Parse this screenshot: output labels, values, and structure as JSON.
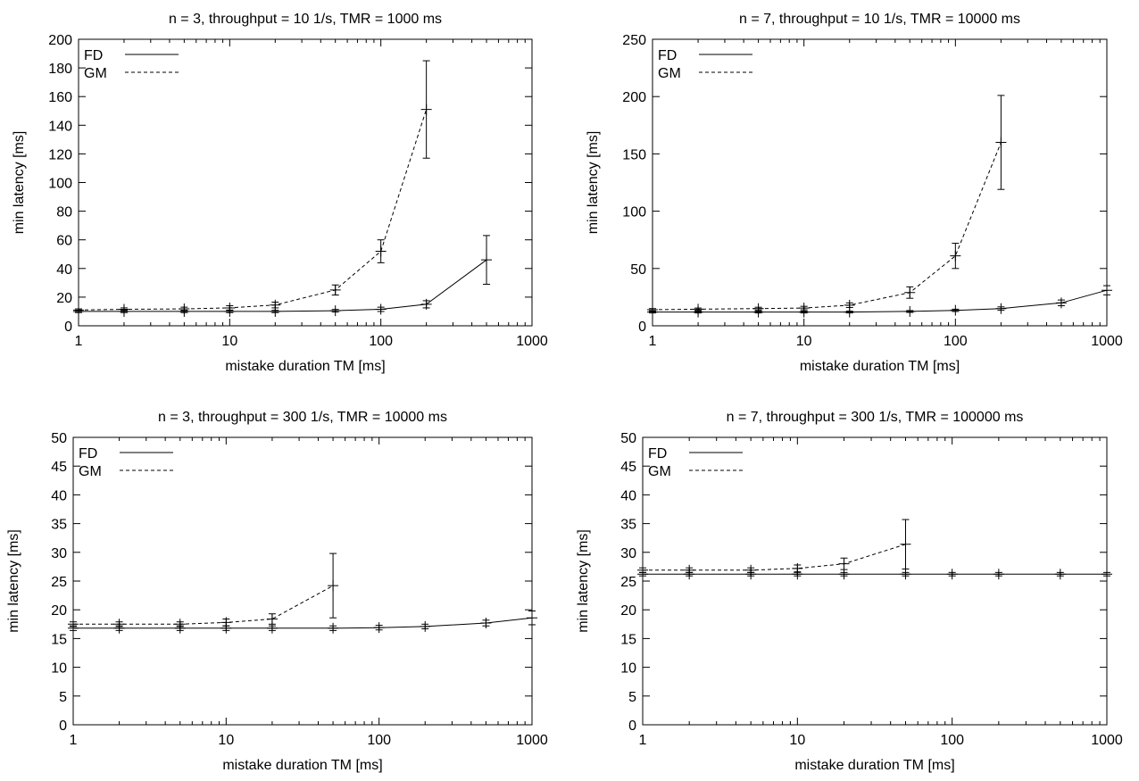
{
  "chart_data": [
    {
      "type": "line",
      "title": "n = 3, throughput = 10 1/s, TMR = 1000 ms",
      "xlabel": "mistake duration TM [ms]",
      "ylabel": "min latency [ms]",
      "xscale": "log",
      "xlim": [
        1,
        1000
      ],
      "ylim": [
        0,
        200
      ],
      "xticks": [
        1,
        10,
        100,
        1000
      ],
      "yticks": [
        0,
        20,
        40,
        60,
        80,
        100,
        120,
        140,
        160,
        180,
        200
      ],
      "legend_position": "top-left",
      "grid": false,
      "series": [
        {
          "name": "FD",
          "dash": "solid",
          "x": [
            1,
            2,
            5,
            10,
            20,
            50,
            100,
            200,
            500
          ],
          "y": [
            10,
            10,
            10,
            10,
            10,
            10.5,
            11.5,
            15,
            46
          ],
          "err": [
            0.8,
            0.8,
            0.8,
            0.8,
            0.8,
            0.9,
            1.5,
            2.5,
            17
          ]
        },
        {
          "name": "GM",
          "dash": "dashed",
          "x": [
            1,
            2,
            5,
            10,
            20,
            50,
            100,
            200
          ],
          "y": [
            11,
            11.5,
            11.8,
            12.5,
            14.5,
            25,
            52,
            151
          ],
          "err": [
            0.8,
            1,
            1.2,
            1.5,
            2,
            3.5,
            8,
            34
          ]
        }
      ]
    },
    {
      "type": "line",
      "title": "n = 7, throughput = 10 1/s, TMR = 10000 ms",
      "xlabel": "mistake duration TM [ms]",
      "ylabel": "min latency [ms]",
      "xscale": "log",
      "xlim": [
        1,
        1000
      ],
      "ylim": [
        0,
        250
      ],
      "xticks": [
        1,
        10,
        100,
        1000
      ],
      "yticks": [
        0,
        50,
        100,
        150,
        200,
        250
      ],
      "legend_position": "top-left",
      "grid": false,
      "series": [
        {
          "name": "FD",
          "dash": "solid",
          "x": [
            1,
            2,
            5,
            10,
            20,
            50,
            100,
            200,
            500,
            1000
          ],
          "y": [
            12,
            12,
            12,
            12,
            12,
            12.5,
            13.5,
            15,
            20,
            31
          ],
          "err": [
            0.8,
            0.8,
            0.8,
            0.8,
            0.8,
            0.8,
            1,
            1.5,
            2.5,
            4
          ]
        },
        {
          "name": "GM",
          "dash": "dashed",
          "x": [
            1,
            2,
            5,
            10,
            20,
            50,
            100,
            200
          ],
          "y": [
            14,
            14.5,
            15,
            15.5,
            18,
            29,
            61,
            160
          ],
          "err": [
            1,
            1,
            1.2,
            1.5,
            2,
            5,
            11,
            41
          ]
        }
      ]
    },
    {
      "type": "line",
      "title": "n = 3, throughput = 300 1/s, TMR = 10000 ms",
      "xlabel": "mistake duration TM [ms]",
      "ylabel": "min latency [ms]",
      "xscale": "log",
      "xlim": [
        1,
        1000
      ],
      "ylim": [
        0,
        50
      ],
      "xticks": [
        1,
        10,
        100,
        1000
      ],
      "yticks": [
        0,
        5,
        10,
        15,
        20,
        25,
        30,
        35,
        40,
        45,
        50
      ],
      "legend_position": "top-left",
      "grid": false,
      "series": [
        {
          "name": "FD",
          "dash": "solid",
          "x": [
            1,
            2,
            5,
            10,
            20,
            50,
            100,
            200,
            500,
            1000
          ],
          "y": [
            16.8,
            16.8,
            16.8,
            16.8,
            16.8,
            16.8,
            16.9,
            17.1,
            17.7,
            18.6
          ],
          "err": [
            0.4,
            0.4,
            0.4,
            0.4,
            0.4,
            0.4,
            0.4,
            0.4,
            0.5,
            1.2
          ]
        },
        {
          "name": "GM",
          "dash": "dashed",
          "x": [
            1,
            2,
            5,
            10,
            20,
            50
          ],
          "y": [
            17.5,
            17.5,
            17.5,
            17.8,
            18.4,
            24.2
          ],
          "err": [
            0.4,
            0.4,
            0.4,
            0.6,
            0.9,
            5.6
          ]
        }
      ]
    },
    {
      "type": "line",
      "title": "n = 7, throughput = 300 1/s, TMR = 100000 ms",
      "xlabel": "mistake duration TM [ms]",
      "ylabel": "min latency [ms]",
      "xscale": "log",
      "xlim": [
        1,
        1000
      ],
      "ylim": [
        0,
        50
      ],
      "xticks": [
        1,
        10,
        100,
        1000
      ],
      "yticks": [
        0,
        5,
        10,
        15,
        20,
        25,
        30,
        35,
        40,
        45,
        50
      ],
      "legend_position": "top-left",
      "grid": false,
      "series": [
        {
          "name": "FD",
          "dash": "solid",
          "x": [
            1,
            2,
            5,
            10,
            20,
            50,
            100,
            200,
            500,
            1000
          ],
          "y": [
            26.2,
            26.2,
            26.2,
            26.2,
            26.2,
            26.2,
            26.2,
            26.2,
            26.2,
            26.2
          ],
          "err": [
            0.3,
            0.3,
            0.3,
            0.3,
            0.3,
            0.3,
            0.3,
            0.3,
            0.3,
            0.3
          ]
        },
        {
          "name": "GM",
          "dash": "dashed",
          "x": [
            1,
            2,
            5,
            10,
            20,
            50
          ],
          "y": [
            26.9,
            26.9,
            26.9,
            27.2,
            28.0,
            31.4
          ],
          "err": [
            0.4,
            0.4,
            0.4,
            0.6,
            1.0,
            4.3
          ]
        }
      ]
    }
  ]
}
